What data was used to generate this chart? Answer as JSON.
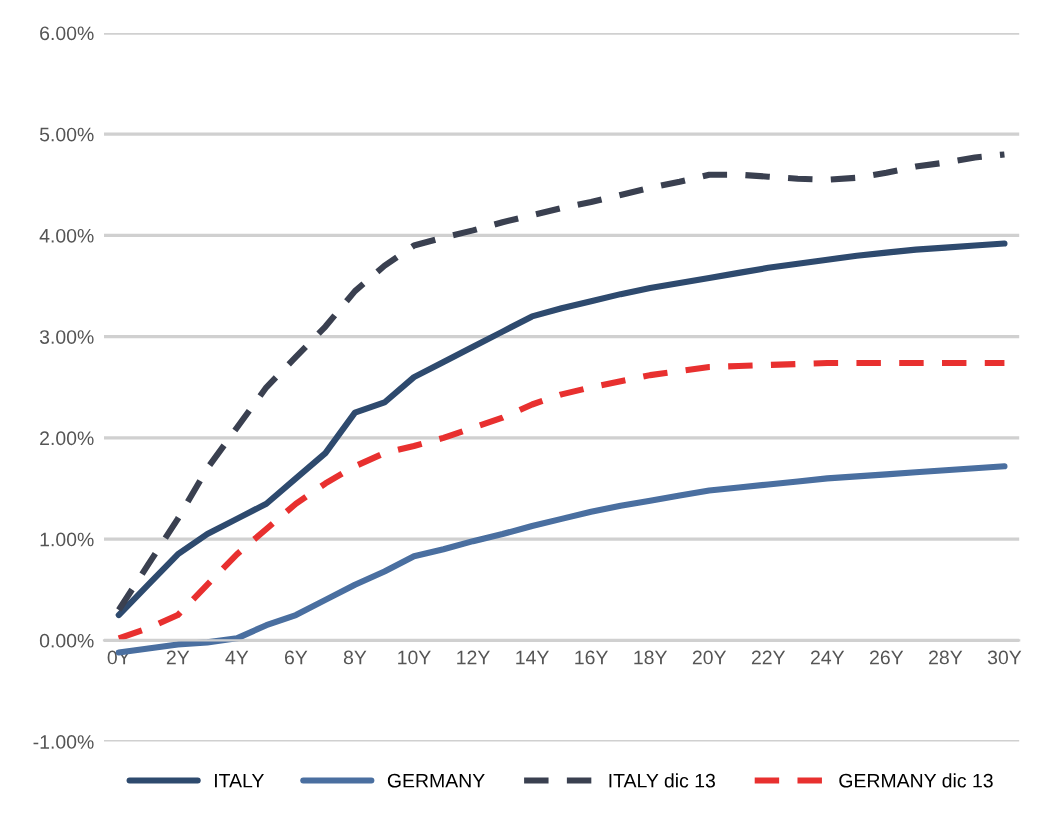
{
  "chart_data": {
    "type": "line",
    "categories": [
      "0Y",
      null,
      "2Y",
      null,
      "4Y",
      null,
      "6Y",
      null,
      "8Y",
      null,
      "10Y",
      null,
      "12Y",
      null,
      "14Y",
      null,
      "16Y",
      null,
      "18Y",
      null,
      "20Y",
      null,
      "22Y",
      null,
      "24Y",
      null,
      "26Y",
      null,
      "28Y",
      null,
      "30Y"
    ],
    "series": [
      {
        "name": "ITALY",
        "color": "#2e4a6e",
        "line_style": "solid",
        "values": [
          0.25,
          0.55,
          0.85,
          1.05,
          1.2,
          1.35,
          1.6,
          1.85,
          2.25,
          2.35,
          2.6,
          2.75,
          2.9,
          3.05,
          3.2,
          3.28,
          3.35,
          3.42,
          3.48,
          3.53,
          3.58,
          3.63,
          3.68,
          3.72,
          3.76,
          3.8,
          3.83,
          3.86,
          3.88,
          3.9,
          3.92
        ]
      },
      {
        "name": "GERMANY",
        "color": "#4a6fa0",
        "line_style": "solid",
        "values": [
          -0.12,
          -0.08,
          -0.04,
          -0.02,
          0.02,
          0.15,
          0.25,
          0.4,
          0.55,
          0.68,
          0.83,
          0.9,
          0.98,
          1.05,
          1.13,
          1.2,
          1.27,
          1.33,
          1.38,
          1.43,
          1.48,
          1.51,
          1.54,
          1.57,
          1.6,
          1.62,
          1.64,
          1.66,
          1.68,
          1.7,
          1.72
        ]
      },
      {
        "name": "ITALY dic 13",
        "color": "#3a4050",
        "line_style": "dashed",
        "values": [
          0.3,
          0.75,
          1.2,
          1.7,
          2.1,
          2.5,
          2.8,
          3.1,
          3.45,
          3.7,
          3.9,
          3.98,
          4.05,
          4.13,
          4.2,
          4.27,
          4.33,
          4.4,
          4.47,
          4.53,
          4.6,
          4.6,
          4.58,
          4.56,
          4.55,
          4.57,
          4.62,
          4.68,
          4.72,
          4.77,
          4.8
        ]
      },
      {
        "name": "GERMANY dic 13",
        "color": "#e8302f",
        "line_style": "dashed",
        "values": [
          0.02,
          0.12,
          0.25,
          0.55,
          0.85,
          1.1,
          1.35,
          1.55,
          1.72,
          1.85,
          1.92,
          2.0,
          2.1,
          2.2,
          2.33,
          2.43,
          2.5,
          2.56,
          2.62,
          2.66,
          2.7,
          2.71,
          2.72,
          2.73,
          2.74,
          2.74,
          2.74,
          2.74,
          2.74,
          2.74,
          2.74
        ]
      }
    ],
    "ylim": [
      -1,
      6
    ],
    "yticks": [
      {
        "value": -1,
        "label": "-1.00%"
      },
      {
        "value": 0,
        "label": "0.00%"
      },
      {
        "value": 1,
        "label": "1.00%"
      },
      {
        "value": 2,
        "label": "2.00%"
      },
      {
        "value": 3,
        "label": "3.00%"
      },
      {
        "value": 4,
        "label": "4.00%"
      },
      {
        "value": 5,
        "label": "5.00%"
      },
      {
        "value": 6,
        "label": "6.00%"
      }
    ],
    "grid": "y",
    "legend": "bottom",
    "marker": "none"
  }
}
